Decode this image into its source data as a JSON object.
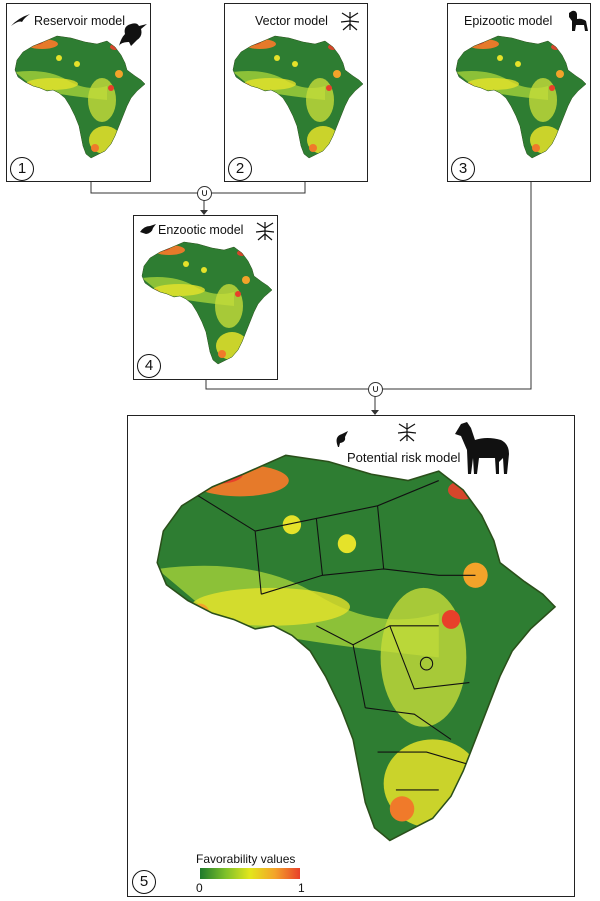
{
  "panels": [
    {
      "number": "1",
      "title": "Reservoir model",
      "icons": [
        "swallow-icon",
        "crow-icon"
      ]
    },
    {
      "number": "2",
      "title": "Vector model",
      "icons": [
        "mosquito-icon"
      ]
    },
    {
      "number": "3",
      "title": "Epizootic model",
      "icons": [
        "dog-icon"
      ]
    },
    {
      "number": "4",
      "title": "Enzootic model",
      "icons": [
        "bird-icon",
        "mosquito-icon"
      ]
    },
    {
      "number": "5",
      "title": "Potential risk model",
      "icons": [
        "bird-icon",
        "mosquito-icon",
        "horse-icon"
      ]
    }
  ],
  "union_symbol": "∪",
  "legend": {
    "title": "Favorability values",
    "min_label": "0",
    "max_label": "1",
    "gradient": [
      "#1e7a2c",
      "#7cbf2a",
      "#e3e61c",
      "#f3a32a",
      "#e8402a"
    ]
  },
  "colors": {
    "low": "#1e7a2c",
    "mid": "#e3e61c",
    "high": "#e8402a",
    "border": "#222222"
  }
}
